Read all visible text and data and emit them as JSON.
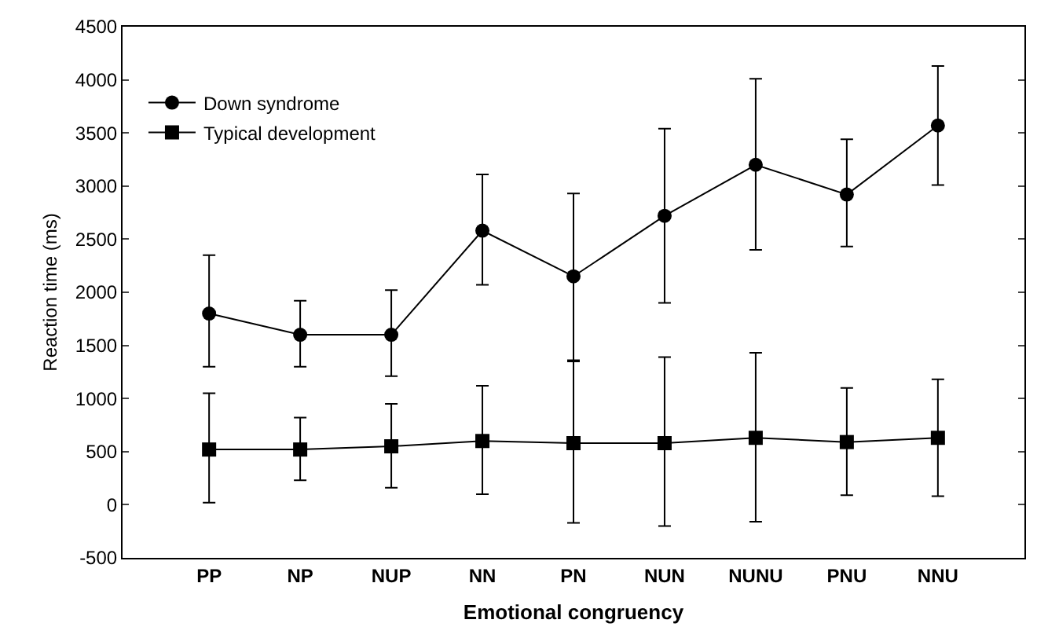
{
  "chart_data": {
    "type": "line",
    "xlabel": "Emotional congruency",
    "ylabel": "Reaction time (ms)",
    "categories": [
      "PP",
      "NP",
      "NUP",
      "NN",
      "PN",
      "NUN",
      "NUNU",
      "PNU",
      "NNU"
    ],
    "series": [
      {
        "name": "Down syndrome",
        "color": "#000000",
        "marker": "circle",
        "values": [
          1800,
          1600,
          1600,
          2580,
          2150,
          2720,
          3200,
          2920,
          3570
        ],
        "errors": [
          [
            1300,
            2350
          ],
          [
            1300,
            1920
          ],
          [
            1210,
            2020
          ],
          [
            2070,
            3110
          ],
          [
            1350,
            2930
          ],
          [
            1900,
            3540
          ],
          [
            2400,
            4010
          ],
          [
            2430,
            3440
          ],
          [
            3010,
            4130
          ]
        ]
      },
      {
        "name": "Typical development",
        "color": "#000000",
        "marker": "square",
        "values": [
          520,
          520,
          550,
          600,
          580,
          580,
          630,
          590,
          630
        ],
        "errors": [
          [
            20,
            1050
          ],
          [
            230,
            820
          ],
          [
            160,
            950
          ],
          [
            100,
            1120
          ],
          [
            -170,
            1360
          ],
          [
            -200,
            1390
          ],
          [
            -160,
            1430
          ],
          [
            90,
            1100
          ],
          [
            80,
            1180
          ]
        ]
      }
    ],
    "ylim": [
      -500,
      4500
    ],
    "yticks": [
      -500,
      0,
      500,
      1000,
      1500,
      2000,
      2500,
      3000,
      3500,
      4000,
      4500
    ],
    "grid": false,
    "legend": "top left"
  }
}
